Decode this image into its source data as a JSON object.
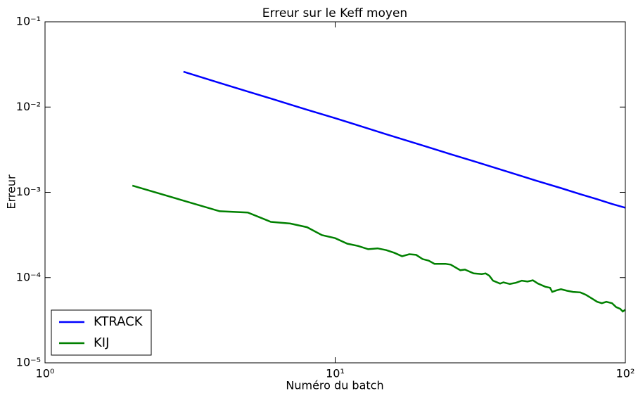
{
  "chart_data": {
    "type": "line",
    "title": "Erreur sur le Keff moyen",
    "x_label": "Numéro du batch",
    "y_label": "Erreur",
    "log_x": true,
    "log_y": true,
    "legend": "lower left",
    "xlim": [
      1,
      100
    ],
    "xticks": [
      {
        "value": 1,
        "label": "10⁰"
      },
      {
        "value": 10,
        "label": "10¹"
      },
      {
        "value": 100,
        "label": "10²"
      }
    ],
    "ylim": [
      1e-05,
      0.1
    ],
    "yticks": [
      {
        "value": 1e-05,
        "label": "10⁻⁵"
      },
      {
        "value": 0.0001,
        "label": "10⁻⁴"
      },
      {
        "value": 0.001,
        "label": "10⁻³"
      },
      {
        "value": 0.01,
        "label": "10⁻²"
      },
      {
        "value": 0.1,
        "label": "10⁻¹"
      }
    ],
    "series": [
      {
        "name": "KTRACK",
        "color": "#0000ff",
        "x": [
          3,
          4,
          5,
          6,
          7,
          8,
          10,
          12,
          15,
          20,
          25,
          30,
          40,
          50,
          60,
          70,
          80,
          90,
          100
        ],
        "values": [
          0.026,
          0.0192,
          0.0152,
          0.0126,
          0.0107,
          0.0093,
          0.0074,
          0.0061,
          0.0048,
          0.00355,
          0.0028,
          0.00232,
          0.00171,
          0.00135,
          0.00112,
          0.00095,
          0.00083,
          0.00073,
          0.00066
        ]
      },
      {
        "name": "KIJ",
        "color": "#008000",
        "x": [
          2,
          3,
          4,
          5,
          6,
          7,
          8,
          9,
          10,
          11,
          12,
          13,
          14,
          15,
          16,
          17,
          18,
          19,
          20,
          21,
          22,
          24,
          25,
          27,
          28,
          30,
          32,
          33,
          34,
          35,
          37,
          38,
          40,
          42,
          44,
          46,
          48,
          50,
          53,
          55,
          56,
          58,
          60,
          63,
          66,
          70,
          73,
          76,
          80,
          83,
          86,
          90,
          93,
          96,
          98,
          100
        ],
        "values": [
          0.0012,
          0.0008,
          0.0006,
          0.00058,
          0.00045,
          0.00043,
          0.00039,
          0.000315,
          0.00029,
          0.00025,
          0.000235,
          0.000215,
          0.00022,
          0.00021,
          0.000195,
          0.000178,
          0.000188,
          0.000185,
          0.000165,
          0.000158,
          0.000145,
          0.000145,
          0.000142,
          0.000122,
          0.000124,
          0.000112,
          0.00011,
          0.000112,
          0.000105,
          9.2e-05,
          8.5e-05,
          8.8e-05,
          8.4e-05,
          8.7e-05,
          9.2e-05,
          9e-05,
          9.3e-05,
          8.5e-05,
          7.8e-05,
          7.6e-05,
          6.8e-05,
          7.1e-05,
          7.3e-05,
          7e-05,
          6.8e-05,
          6.7e-05,
          6.3e-05,
          5.8e-05,
          5.2e-05,
          5e-05,
          5.2e-05,
          5e-05,
          4.5e-05,
          4.3e-05,
          4e-05,
          4.2e-05
        ]
      }
    ]
  }
}
